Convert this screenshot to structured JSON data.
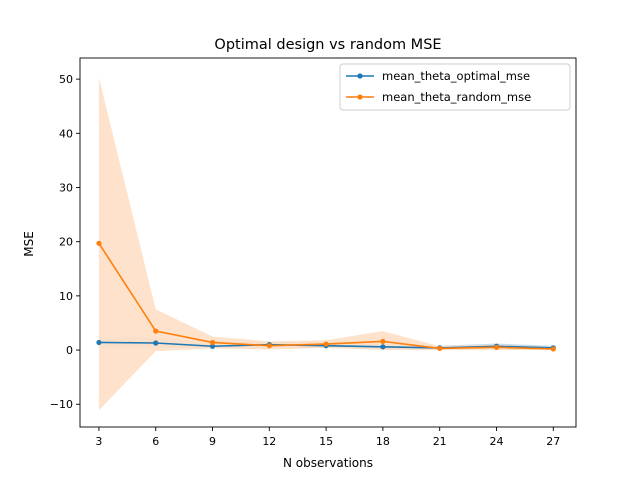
{
  "chart_data": {
    "type": "line",
    "title": "Optimal design vs random MSE",
    "xlabel": "N observations",
    "ylabel": "MSE",
    "x": [
      3,
      6,
      9,
      12,
      15,
      18,
      21,
      24,
      27
    ],
    "xticks": [
      3,
      6,
      9,
      12,
      15,
      18,
      21,
      24,
      27
    ],
    "yticks": [
      -10,
      0,
      10,
      20,
      30,
      40,
      50
    ],
    "xlim": [
      2.0,
      28.2
    ],
    "ylim": [
      -14.2,
      53.9
    ],
    "grid": false,
    "legend_position": "top-right",
    "series": [
      {
        "name": "mean_theta_optimal_mse",
        "color": "#1f77b4",
        "values": [
          1.4,
          1.3,
          0.7,
          1.0,
          0.8,
          0.6,
          0.4,
          0.7,
          0.4
        ],
        "band_lower": [
          0.5,
          0.4,
          0.3,
          0.5,
          0.4,
          0.2,
          0.1,
          0.3,
          0.1
        ],
        "band_upper": [
          2.4,
          2.3,
          1.2,
          1.6,
          1.3,
          1.1,
          0.8,
          1.2,
          0.8
        ]
      },
      {
        "name": "mean_theta_random_mse",
        "color": "#ff7f0e",
        "band_color": "#ffdfc5",
        "values": [
          19.7,
          3.5,
          1.4,
          0.8,
          1.1,
          1.6,
          0.3,
          0.5,
          0.2
        ],
        "band_lower": [
          -11.1,
          -0.2,
          0.3,
          0.1,
          0.4,
          0.0,
          0.0,
          0.0,
          0.0
        ],
        "band_upper": [
          50.3,
          7.5,
          2.5,
          1.6,
          1.8,
          3.5,
          0.7,
          1.0,
          0.5
        ]
      }
    ]
  }
}
